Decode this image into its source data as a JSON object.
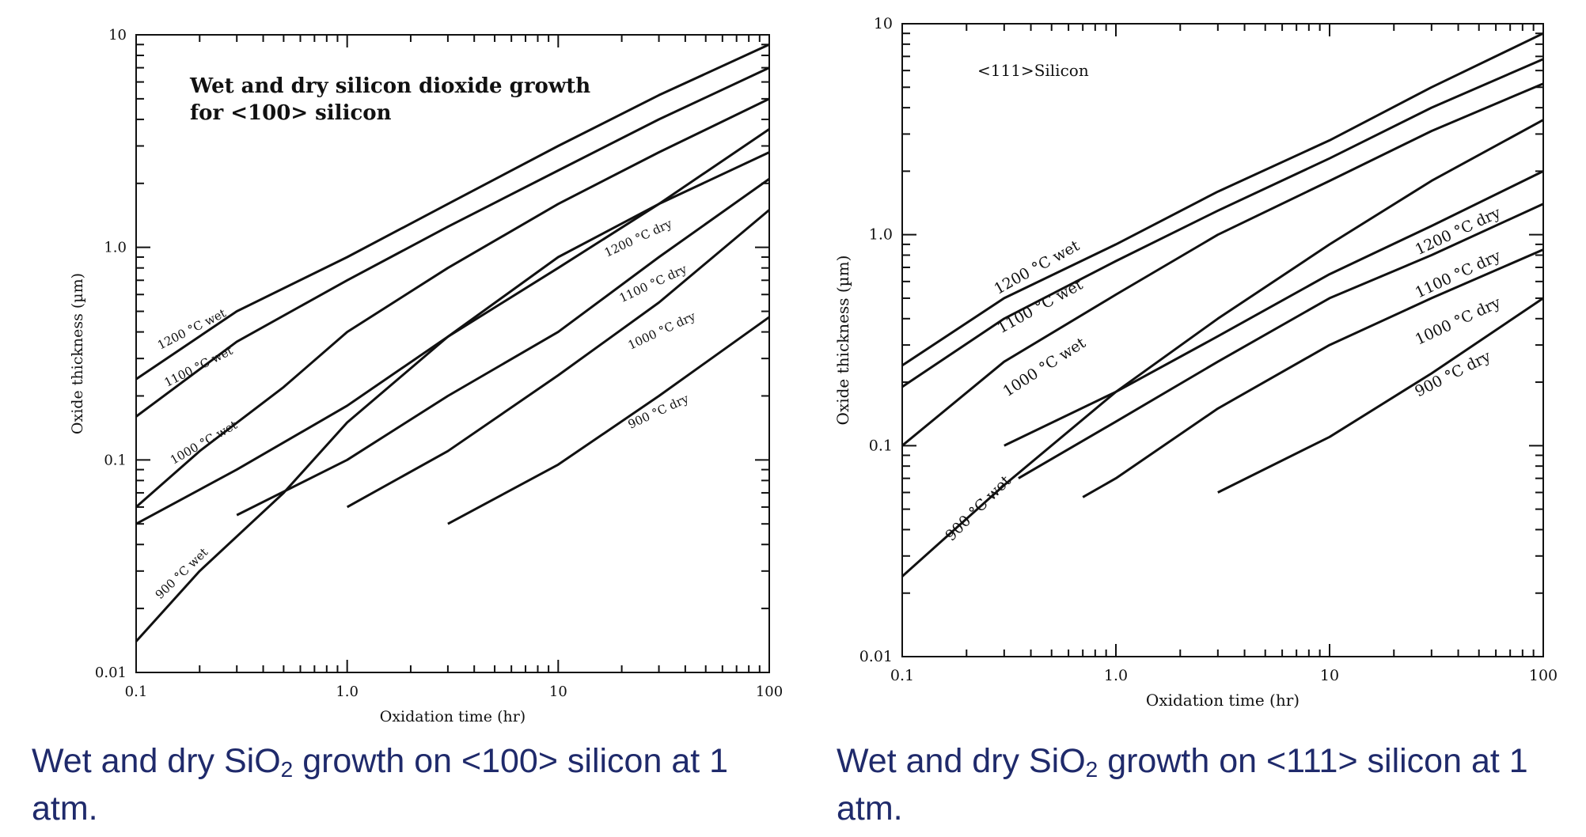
{
  "captions": {
    "left": {
      "pre": "Wet and dry SiO",
      "sub": "2",
      "post": " growth on <100> silicon at 1 atm."
    },
    "right": {
      "pre": "Wet and dry SiO",
      "sub": "2",
      "post": " growth on <111> silicon at 1 atm."
    }
  },
  "chart_data": [
    {
      "type": "line",
      "title": [
        "Wet and dry silicon dioxide growth",
        "for <100> silicon"
      ],
      "xlabel": "Oxidation time (hr)",
      "ylabel": "Oxide thickness (µm)",
      "xscale": "log",
      "yscale": "log",
      "xlim": [
        0.1,
        100
      ],
      "ylim": [
        0.01,
        10
      ],
      "xticks": [
        {
          "v": 0.1,
          "label": "0.1"
        },
        {
          "v": 1,
          "label": "1.0"
        },
        {
          "v": 10,
          "label": "10"
        },
        {
          "v": 100,
          "label": "100"
        }
      ],
      "yticks": [
        {
          "v": 0.01,
          "label": "0.01"
        },
        {
          "v": 0.1,
          "label": "0.1"
        },
        {
          "v": 1,
          "label": "1.0"
        },
        {
          "v": 10,
          "label": "10"
        }
      ],
      "grid": false,
      "series": [
        {
          "name": "1200 °C wet",
          "x": [
            0.1,
            0.3,
            1,
            3,
            10,
            30,
            100
          ],
          "y": [
            0.24,
            0.5,
            0.9,
            1.6,
            3.0,
            5.2,
            9.0
          ]
        },
        {
          "name": "1100 °C wet",
          "x": [
            0.1,
            0.3,
            1,
            3,
            10,
            30,
            100
          ],
          "y": [
            0.16,
            0.36,
            0.7,
            1.25,
            2.3,
            4.0,
            7.0
          ]
        },
        {
          "name": "1000 °C wet",
          "x": [
            0.1,
            0.2,
            0.5,
            1,
            3,
            10,
            30,
            100
          ],
          "y": [
            0.06,
            0.11,
            0.22,
            0.4,
            0.8,
            1.6,
            2.8,
            5.0
          ]
        },
        {
          "name": "900 °C wet",
          "x": [
            0.1,
            0.2,
            0.5,
            1,
            3,
            10,
            30,
            100
          ],
          "y": [
            0.014,
            0.03,
            0.07,
            0.15,
            0.38,
            0.9,
            1.6,
            2.8
          ]
        },
        {
          "name": "1200 °C dry",
          "x": [
            0.1,
            0.3,
            1,
            3,
            10,
            30,
            100
          ],
          "y": [
            0.05,
            0.09,
            0.18,
            0.38,
            0.8,
            1.6,
            3.6
          ]
        },
        {
          "name": "1100 °C dry",
          "x": [
            0.3,
            1,
            3,
            10,
            30,
            100
          ],
          "y": [
            0.055,
            0.1,
            0.2,
            0.4,
            0.9,
            2.1
          ]
        },
        {
          "name": "1000 °C dry",
          "x": [
            1.0,
            3,
            10,
            30,
            100
          ],
          "y": [
            0.06,
            0.11,
            0.25,
            0.55,
            1.5
          ]
        },
        {
          "name": "900 °C dry",
          "x": [
            3,
            10,
            30,
            100
          ],
          "y": [
            0.05,
            0.095,
            0.2,
            0.47
          ]
        }
      ]
    },
    {
      "type": "line",
      "title": "<111>Silicon",
      "xlabel": "Oxidation time (hr)",
      "ylabel": "Oxide thickness (µm)",
      "xscale": "log",
      "yscale": "log",
      "xlim": [
        0.1,
        100
      ],
      "ylim": [
        0.01,
        10
      ],
      "xticks": [
        {
          "v": 0.1,
          "label": "0.1"
        },
        {
          "v": 1,
          "label": "1.0"
        },
        {
          "v": 10,
          "label": "10"
        },
        {
          "v": 100,
          "label": "100"
        }
      ],
      "yticks": [
        {
          "v": 0.01,
          "label": "0.01"
        },
        {
          "v": 0.1,
          "label": "0.1"
        },
        {
          "v": 1,
          "label": "1.0"
        },
        {
          "v": 10,
          "label": "10"
        }
      ],
      "grid": false,
      "series": [
        {
          "name": "1200 °C wet",
          "x": [
            0.1,
            0.3,
            1,
            3,
            10,
            30,
            100
          ],
          "y": [
            0.24,
            0.5,
            0.9,
            1.6,
            2.8,
            5.0,
            9.0
          ]
        },
        {
          "name": "1100 °C wet",
          "x": [
            0.1,
            0.3,
            1,
            3,
            10,
            30,
            100
          ],
          "y": [
            0.19,
            0.4,
            0.75,
            1.3,
            2.3,
            4.0,
            6.8
          ]
        },
        {
          "name": "1000 °C wet",
          "x": [
            0.1,
            0.3,
            1,
            3,
            10,
            30,
            100
          ],
          "y": [
            0.1,
            0.25,
            0.52,
            1.0,
            1.8,
            3.1,
            5.2
          ]
        },
        {
          "name": "900 °C wet",
          "x": [
            0.1,
            0.3,
            1,
            3,
            10,
            30,
            100
          ],
          "y": [
            0.024,
            0.065,
            0.18,
            0.4,
            0.9,
            1.8,
            3.5
          ]
        },
        {
          "name": "1200 °C dry",
          "x": [
            0.3,
            1,
            3,
            10,
            30,
            100
          ],
          "y": [
            0.1,
            0.18,
            0.33,
            0.65,
            1.1,
            2.0
          ]
        },
        {
          "name": "1100 °C dry",
          "x": [
            0.35,
            1,
            3,
            10,
            30,
            100
          ],
          "y": [
            0.07,
            0.13,
            0.25,
            0.5,
            0.8,
            1.4
          ]
        },
        {
          "name": "1000 °C dry",
          "x": [
            0.7,
            1,
            3,
            10,
            30,
            100
          ],
          "y": [
            0.057,
            0.07,
            0.15,
            0.3,
            0.5,
            0.85
          ]
        },
        {
          "name": "900 °C dry",
          "x": [
            3,
            10,
            30,
            100
          ],
          "y": [
            0.06,
            0.11,
            0.22,
            0.5
          ]
        }
      ]
    }
  ]
}
